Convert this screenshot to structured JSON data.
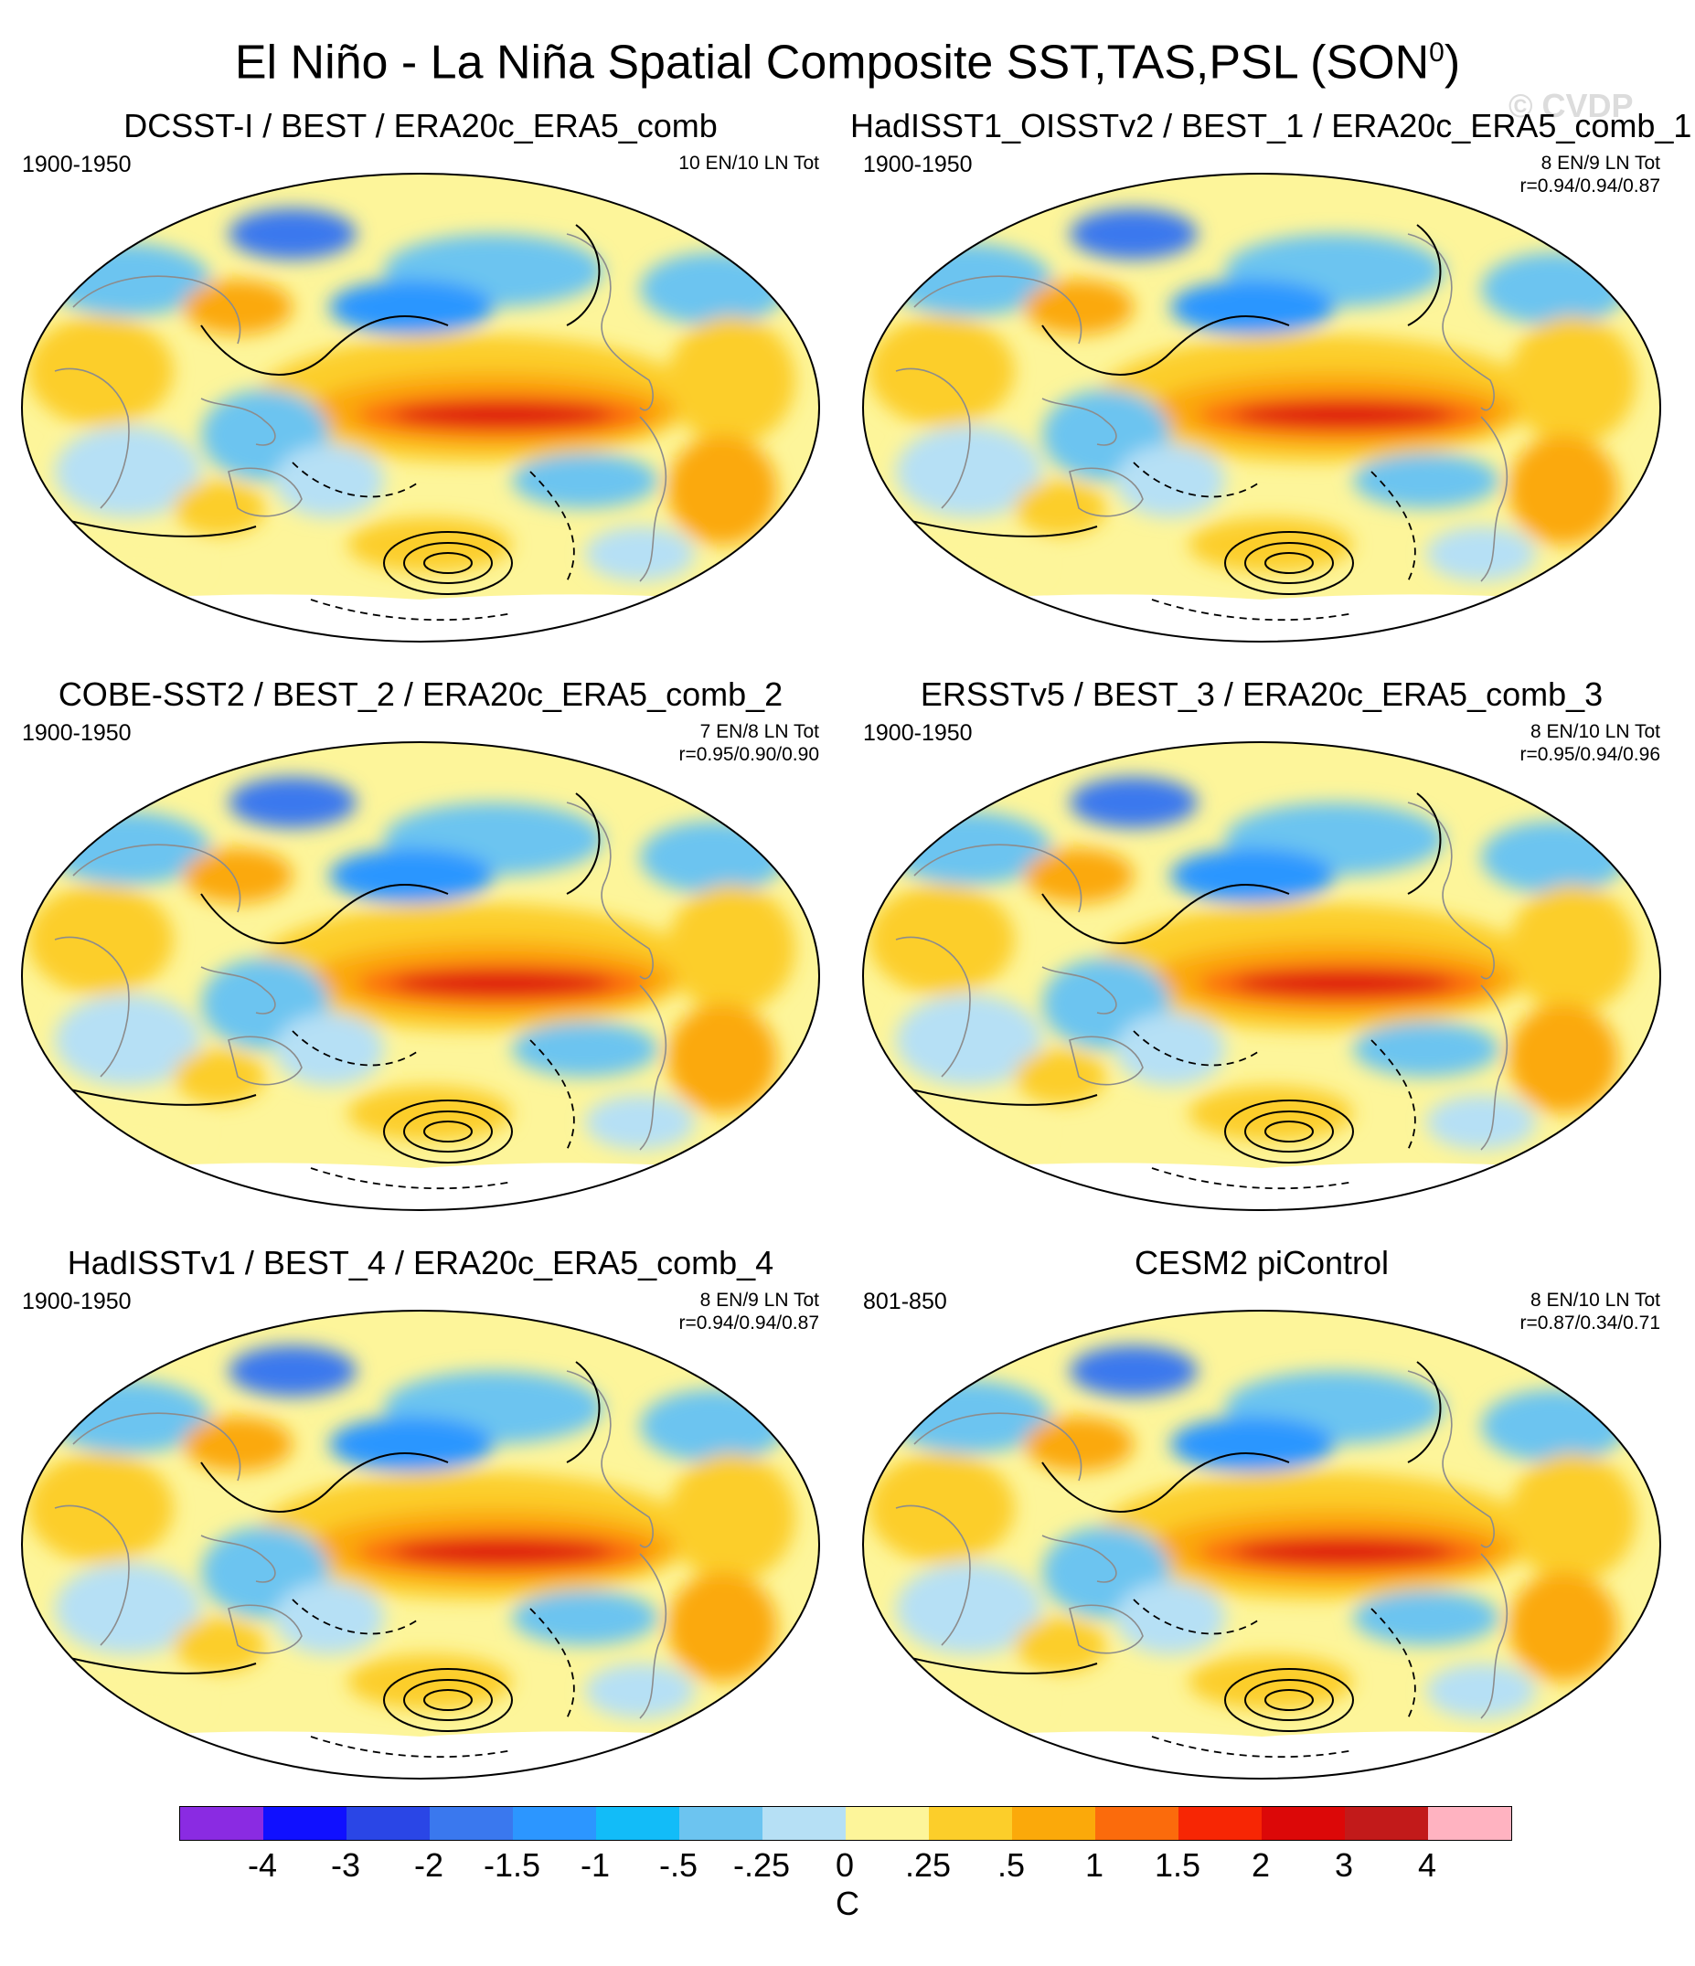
{
  "title": {
    "text": "El Niño - La Niña Spatial Composite SST,TAS,PSL (SON",
    "superscript": "0",
    "close": ")"
  },
  "watermark": "© CVDP",
  "panels": [
    {
      "id": "p1",
      "title": "DCSST-I / BEST / ERA20c_ERA5_comb",
      "period": "1900-1950",
      "count": "10 EN/10 LN Tot",
      "corr": ""
    },
    {
      "id": "p2",
      "title": "HadISST1_OISSTv2 / BEST_1 / ERA20c_ERA5_comb_1",
      "period": "1900-1950",
      "count": "8 EN/9 LN Tot",
      "corr": "r=0.94/0.94/0.87"
    },
    {
      "id": "p3",
      "title": "COBE-SST2 / BEST_2 / ERA20c_ERA5_comb_2",
      "period": "1900-1950",
      "count": "7 EN/8 LN Tot",
      "corr": "r=0.95/0.90/0.90"
    },
    {
      "id": "p4",
      "title": "ERSSTv5 / BEST_3 / ERA20c_ERA5_comb_3",
      "period": "1900-1950",
      "count": "8 EN/10 LN Tot",
      "corr": "r=0.95/0.94/0.96"
    },
    {
      "id": "p5",
      "title": "HadISSTv1 / BEST_4 / ERA20c_ERA5_comb_4",
      "period": "1900-1950",
      "count": "8 EN/9 LN Tot",
      "corr": "r=0.94/0.94/0.87"
    },
    {
      "id": "p6",
      "title": "CESM2 piControl",
      "period": "801-850",
      "count": "8 EN/10 LN Tot",
      "corr": "r=0.87/0.34/0.71"
    }
  ],
  "colorbar": {
    "colors": [
      "#8a2be2",
      "#1010ff",
      "#2a46e6",
      "#3a78ee",
      "#2c96ff",
      "#12bcf8",
      "#6cc4f0",
      "#b6e0f5",
      "#fdf59a",
      "#fcce2a",
      "#fba90a",
      "#fb6b0c",
      "#f72604",
      "#dc0808",
      "#c21a1a",
      "#ffb3c1"
    ],
    "labels": [
      "-4",
      "-3",
      "-2",
      "-1.5",
      "-1",
      "-.5",
      "-.25",
      "0",
      ".25",
      ".5",
      "1",
      "1.5",
      "2",
      "3",
      "4"
    ],
    "unit": "C"
  }
}
